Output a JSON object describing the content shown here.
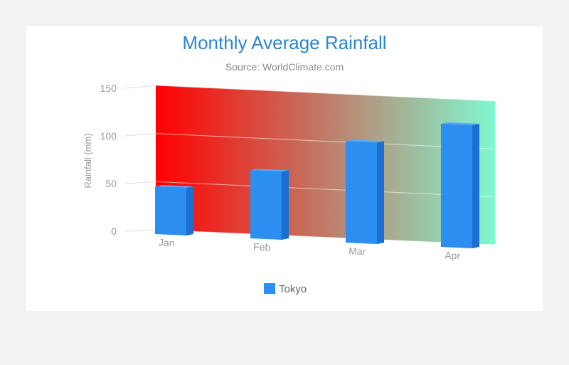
{
  "chart_data": {
    "type": "bar",
    "title": "Monthly Average Rainfall",
    "subtitle": "Source: WorldClimate.com",
    "xlabel": "",
    "ylabel": "Rainfall (mm)",
    "categories": [
      "Jan",
      "Feb",
      "Mar",
      "Apr"
    ],
    "ylim": [
      0,
      150
    ],
    "yticks": [
      "0",
      "50",
      "100",
      "150"
    ],
    "series": [
      {
        "name": "Tokyo",
        "values": [
          49.9,
          71.5,
          106.4,
          129.2
        ],
        "color": "#2b8ef0"
      }
    ],
    "background_gradient": [
      "#ff0000",
      "#80f8d0"
    ],
    "legend": "bottom-center",
    "grid": true,
    "style": "3d"
  }
}
